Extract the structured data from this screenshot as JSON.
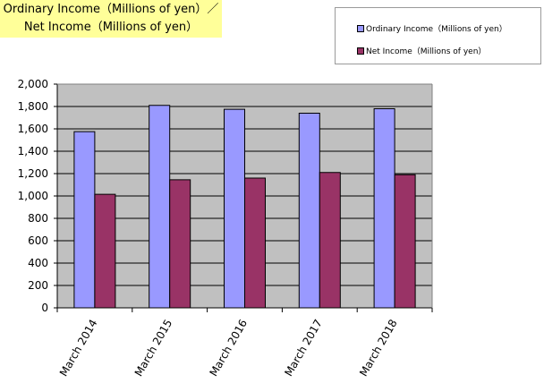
{
  "chart_data": {
    "type": "bar",
    "title_line1": "Ordinary Income（Millions of yen）／",
    "title_line2": "Net Income（Millions of yen）",
    "categories": [
      "March 2014",
      "March 2015",
      "March 2016",
      "March 2017",
      "March 2018"
    ],
    "series": [
      {
        "name": "Ordinary Income（Millions of yen）",
        "color": "#9999ff",
        "values": [
          1575,
          1810,
          1775,
          1740,
          1780
        ]
      },
      {
        "name": "Net Income（Millions of yen）",
        "color": "#993366",
        "values": [
          1015,
          1145,
          1160,
          1210,
          1190
        ]
      }
    ],
    "ylim": [
      0,
      2000
    ],
    "y_ticks": [
      0,
      200,
      400,
      600,
      800,
      1000,
      1200,
      1400,
      1600,
      1800,
      2000
    ],
    "y_tick_labels": [
      "0",
      "200",
      "400",
      "600",
      "800",
      "1,000",
      "1,200",
      "1,400",
      "1,600",
      "1,800",
      "2,000"
    ],
    "plot_background": "#c0c0c0",
    "grid": true,
    "legend_position": "top-right"
  }
}
